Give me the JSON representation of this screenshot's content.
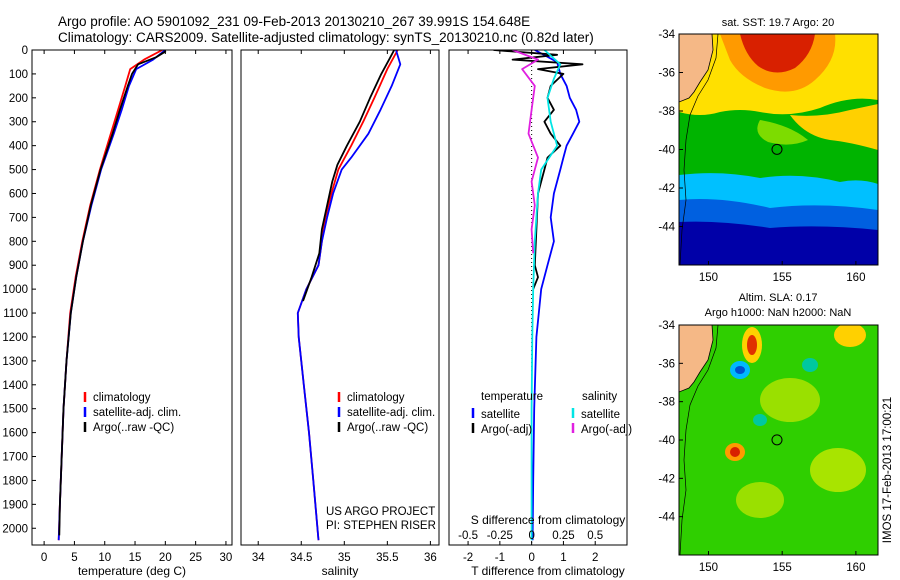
{
  "header": {
    "line1": "Argo profile: AO 5901092_231 09-Feb-2013 20130210_267 39.991S 154.648E",
    "line2": "Climatology: CARS2009. Satellite-adjusted climatology: synTS_20130210.nc (0.82d later)"
  },
  "colors": {
    "climatology": "#ff0000",
    "satellite": "#0000ff",
    "argo": "#000000",
    "salinity_satellite": "#00e5e5",
    "salinity_argo": "#e020e0",
    "land": "#f5b886",
    "dotted_zero": "#000000"
  },
  "depth_axis": {
    "ticks": [
      "0",
      "100",
      "200",
      "300",
      "400",
      "500",
      "600",
      "700",
      "800",
      "900",
      "1000",
      "1100",
      "1200",
      "1300",
      "1400",
      "1500",
      "1600",
      "1700",
      "1800",
      "1900",
      "2000"
    ]
  },
  "chart_data": [
    {
      "type": "line",
      "id": "temperature",
      "xlabel": "temperature (deg C)",
      "xlim": [
        -2,
        31
      ],
      "ylim": [
        2070,
        0
      ],
      "xticks": [
        "0",
        "5",
        "10",
        "15",
        "20",
        "25",
        "30"
      ],
      "xtick_values": [
        0,
        5,
        10,
        15,
        20,
        25,
        30
      ],
      "legend": [
        "climatology",
        "satellite-adj. clim.",
        "Argo(..raw -QC)"
      ],
      "series": [
        {
          "name": "climatology",
          "color": "#ff0000",
          "depth": [
            0,
            40,
            80,
            150,
            250,
            350,
            500,
            650,
            800,
            950,
            1100,
            1300,
            1500,
            1700,
            1900,
            2050
          ],
          "values": [
            19.5,
            16.5,
            14.2,
            13.4,
            12.2,
            11.0,
            9.2,
            7.6,
            6.3,
            5.2,
            4.3,
            3.7,
            3.2,
            2.9,
            2.6,
            2.4
          ]
        },
        {
          "name": "satellite-adj. clim.",
          "color": "#0000ff",
          "depth": [
            0,
            40,
            80,
            150,
            250,
            350,
            500,
            650,
            800,
            950,
            1100,
            1300,
            1500,
            1700,
            1900,
            2050
          ],
          "values": [
            20.0,
            18.0,
            15.2,
            14.0,
            12.8,
            11.5,
            9.4,
            7.8,
            6.4,
            5.3,
            4.4,
            3.7,
            3.2,
            2.9,
            2.6,
            2.4
          ]
        },
        {
          "name": "Argo(..raw -QC)",
          "color": "#000000",
          "depth": [
            5,
            30,
            60,
            100,
            150,
            250,
            350,
            500,
            650,
            800,
            950,
            1100,
            1300,
            1500,
            1700,
            1900,
            2030
          ],
          "values": [
            20.1,
            18.5,
            15.5,
            14.5,
            13.8,
            12.5,
            11.3,
            9.3,
            7.7,
            6.4,
            5.3,
            4.4,
            3.7,
            3.2,
            2.9,
            2.6,
            2.5
          ]
        }
      ]
    },
    {
      "type": "line",
      "id": "salinity",
      "xlabel": "salinity",
      "xlim": [
        33.8,
        36.1
      ],
      "ylim": [
        2070,
        0
      ],
      "xticks": [
        "34",
        "34.5",
        "35",
        "35.5",
        "36"
      ],
      "xtick_values": [
        34,
        34.5,
        35,
        35.5,
        36
      ],
      "legend": [
        "climatology",
        "satellite-adj. clim.",
        "Argo(..raw -QC)"
      ],
      "annotation": [
        "US ARGO PROJECT",
        "PI: STEPHEN RISER"
      ],
      "series": [
        {
          "name": "climatology",
          "color": "#ff0000",
          "depth": [
            0,
            80,
            200,
            300,
            400,
            500,
            600,
            700,
            800,
            900,
            1000,
            1100,
            1200,
            1400,
            1600,
            1800,
            2050
          ],
          "values": [
            35.62,
            35.5,
            35.35,
            35.22,
            35.08,
            34.93,
            34.85,
            34.78,
            34.74,
            34.7,
            34.56,
            34.46,
            34.47,
            34.53,
            34.59,
            34.64,
            34.7
          ]
        },
        {
          "name": "satellite-adj. clim.",
          "color": "#0000ff",
          "depth": [
            0,
            60,
            150,
            250,
            350,
            450,
            500,
            600,
            700,
            800,
            900,
            1000,
            1100,
            1200,
            1400,
            1600,
            1800,
            2050
          ],
          "values": [
            35.6,
            35.65,
            35.55,
            35.42,
            35.28,
            35.08,
            34.97,
            34.87,
            34.8,
            34.74,
            34.7,
            34.56,
            34.46,
            34.47,
            34.53,
            34.59,
            34.64,
            34.7
          ]
        },
        {
          "name": "Argo(..raw -QC)",
          "color": "#000000",
          "depth": [
            0,
            40,
            100,
            200,
            300,
            400,
            480,
            550,
            650,
            750,
            850,
            950,
            1050
          ],
          "values": [
            35.58,
            35.52,
            35.43,
            35.3,
            35.18,
            35.03,
            34.92,
            34.86,
            34.8,
            34.74,
            34.71,
            34.62,
            34.52
          ]
        }
      ]
    },
    {
      "type": "line",
      "id": "difference",
      "xlabel": "T difference from climatology",
      "xlabel_top": "S difference from climatology",
      "xlim": [
        -2.6,
        3.0
      ],
      "ylim": [
        2070,
        0
      ],
      "xticks": [
        "-2",
        "-1",
        "0",
        "1",
        "2"
      ],
      "xtick_values": [
        -2,
        -1,
        0,
        1,
        2
      ],
      "xticks_top": [
        "-0.5",
        "-0.25",
        "0",
        "0.25",
        "0.5"
      ],
      "xticks_top_values": [
        -2,
        -1,
        0,
        1,
        2
      ],
      "legend_left": [
        "temperature",
        "satellite",
        "Argo(-adj)"
      ],
      "legend_right": [
        "salinity",
        "satellite",
        "Argo(-adj)"
      ],
      "series": [
        {
          "name": "satellite",
          "group": "temperature",
          "color": "#0000ff",
          "depth": [
            0,
            50,
            100,
            150,
            200,
            250,
            300,
            350,
            400,
            450,
            500,
            600,
            700,
            800,
            900,
            1000,
            1200,
            1500,
            1800,
            2050
          ],
          "values": [
            0.1,
            0.8,
            0.9,
            1.1,
            1.2,
            1.4,
            1.5,
            1.3,
            1.1,
            1.0,
            0.9,
            0.7,
            0.6,
            0.7,
            0.5,
            0.3,
            0.15,
            0.08,
            0.05,
            0.03
          ]
        },
        {
          "name": "Argo(-adj)",
          "group": "temperature",
          "color": "#000000",
          "depth": [
            0,
            20,
            40,
            60,
            80,
            100,
            150,
            200,
            250,
            300,
            350,
            400,
            450,
            500,
            550,
            600,
            900,
            950,
            1000
          ],
          "values": [
            -1.2,
            0.8,
            -0.6,
            1.6,
            0.2,
            1.0,
            0.6,
            0.5,
            0.7,
            0.4,
            0.6,
            0.9,
            0.5,
            0.4,
            0.3,
            0.2,
            0.1,
            0.2,
            0.05
          ]
        },
        {
          "name": "satellite",
          "group": "salinity",
          "color": "#00e5e5",
          "depth": [
            0,
            60,
            120,
            200,
            300,
            400,
            500,
            600,
            700,
            800,
            1000,
            1200,
            1500,
            1800,
            2050
          ],
          "values": [
            0.4,
            0.9,
            0.7,
            0.5,
            0.6,
            0.8,
            0.3,
            0.2,
            0.15,
            0.1,
            0.05,
            0.02,
            0.0,
            0.0,
            0.0
          ]
        },
        {
          "name": "Argo(-adj)",
          "group": "salinity",
          "color": "#e020e0",
          "depth": [
            0,
            40,
            80,
            150,
            250,
            350,
            450,
            550,
            650,
            750,
            850
          ],
          "values": [
            -0.6,
            0.2,
            -0.3,
            0.1,
            0.0,
            -0.1,
            0.2,
            0.0,
            0.1,
            0.0,
            0.05
          ]
        }
      ]
    }
  ],
  "maps": [
    {
      "id": "sst",
      "title": "sat. SST: 19.7 Argo: 20",
      "lat_ticks": [
        "-34",
        "-36",
        "-38",
        "-40",
        "-42",
        "-44"
      ],
      "lat_values": [
        -34,
        -36,
        -38,
        -40,
        -42,
        -44
      ],
      "lon_ticks": [
        "150",
        "155",
        "160"
      ],
      "lon_values": [
        150,
        155,
        160
      ],
      "lat_range": [
        -46,
        -34
      ],
      "lon_range": [
        148,
        161.5
      ],
      "float_position": {
        "lat": -39.991,
        "lon": 154.648
      }
    },
    {
      "id": "sla",
      "title_line1": "Altim. SLA: 0.17",
      "title_line2": "Argo h1000: NaN h2000: NaN",
      "lat_ticks": [
        "-34",
        "-36",
        "-38",
        "-40",
        "-42",
        "-44"
      ],
      "lat_values": [
        -34,
        -36,
        -38,
        -40,
        -42,
        -44
      ],
      "lon_ticks": [
        "150",
        "155",
        "160"
      ],
      "lon_values": [
        150,
        155,
        160
      ],
      "lat_range": [
        -46,
        -34
      ],
      "lon_range": [
        148,
        161.5
      ],
      "float_position": {
        "lat": -39.991,
        "lon": 154.648
      }
    }
  ],
  "stamp": "IMOS 17-Feb-2013 17:00:21"
}
